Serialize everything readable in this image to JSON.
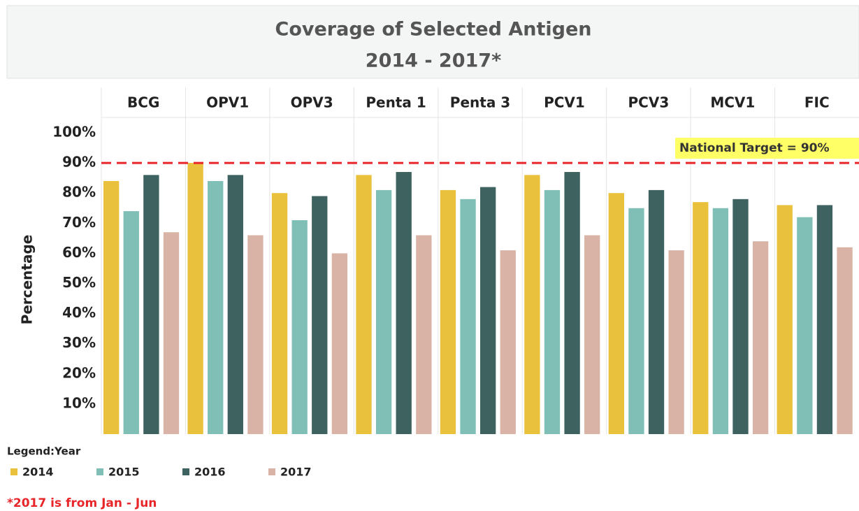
{
  "chart_data": {
    "type": "bar",
    "title": "Coverage of Selected Antigen",
    "subtitle": "2014 - 2017*",
    "y_label": "Percentage",
    "legend_title": "Legend:Year",
    "footnote": "*2017 is from Jan - Jun",
    "categories": [
      "BCG",
      "OPV1",
      "OPV3",
      "Penta 1",
      "Penta 3",
      "PCV1",
      "PCV3",
      "MCV1",
      "FIC"
    ],
    "series": [
      {
        "name": "2014",
        "color": "#e9c13d",
        "values": [
          84,
          90,
          80,
          86,
          81,
          86,
          80,
          77,
          76
        ]
      },
      {
        "name": "2015",
        "color": "#7fbfb6",
        "values": [
          74,
          84,
          71,
          81,
          78,
          81,
          75,
          75,
          72
        ]
      },
      {
        "name": "2016",
        "color": "#3e625f",
        "values": [
          86,
          86,
          79,
          87,
          82,
          87,
          81,
          78,
          76
        ]
      },
      {
        "name": "2017",
        "color": "#d9b4a6",
        "values": [
          67,
          66,
          60,
          66,
          61,
          66,
          61,
          64,
          62
        ]
      }
    ],
    "target": {
      "value": 90,
      "label": "National Target = 90%",
      "color": "#e8262a"
    },
    "ylim": [
      0,
      100
    ],
    "yticks": [
      {
        "value": 10,
        "label": "10%"
      },
      {
        "value": 20,
        "label": "20%"
      },
      {
        "value": 30,
        "label": "30%"
      },
      {
        "value": 40,
        "label": "40%"
      },
      {
        "value": 50,
        "label": "50%"
      },
      {
        "value": 60,
        "label": "60%"
      },
      {
        "value": 70,
        "label": "70%"
      },
      {
        "value": 80,
        "label": "80%"
      },
      {
        "value": 90,
        "label": "90%"
      },
      {
        "value": 100,
        "label": "100%"
      }
    ]
  }
}
